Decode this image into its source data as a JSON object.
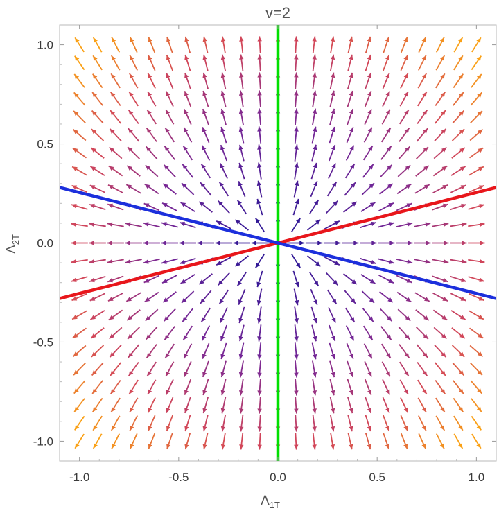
{
  "chart_data": {
    "type": "stream",
    "title": "v=2",
    "xlabel": {
      "main": "Λ",
      "sub": "1T"
    },
    "ylabel": {
      "main": "Λ",
      "sub": "2T"
    },
    "xlim": [
      -1.1,
      1.1
    ],
    "ylim": [
      -1.1,
      1.1
    ],
    "x_ticks": [
      "-1.0",
      "-0.5",
      "0.0",
      "0.5",
      "1.0"
    ],
    "y_ticks": [
      "-1.0",
      "-0.5",
      "0.0",
      "0.5",
      "1.0"
    ],
    "x_tick_values": [
      -1.0,
      -0.5,
      0.0,
      0.5,
      1.0
    ],
    "y_tick_values": [
      -1.0,
      -0.5,
      0.0,
      0.5,
      1.0
    ],
    "grid": false,
    "field": "radial outward from origin",
    "lines": [
      {
        "color": "#00e000",
        "x1": 0,
        "y1": -1.1,
        "x2": 0,
        "y2": 1.1
      },
      {
        "color": "#e8161b",
        "x1": -1.1,
        "y1": -0.28,
        "x2": 1.1,
        "y2": 0.28
      },
      {
        "color": "#1c2fdc",
        "x1": -1.1,
        "y1": 0.28,
        "x2": 1.1,
        "y2": -0.28
      }
    ]
  }
}
